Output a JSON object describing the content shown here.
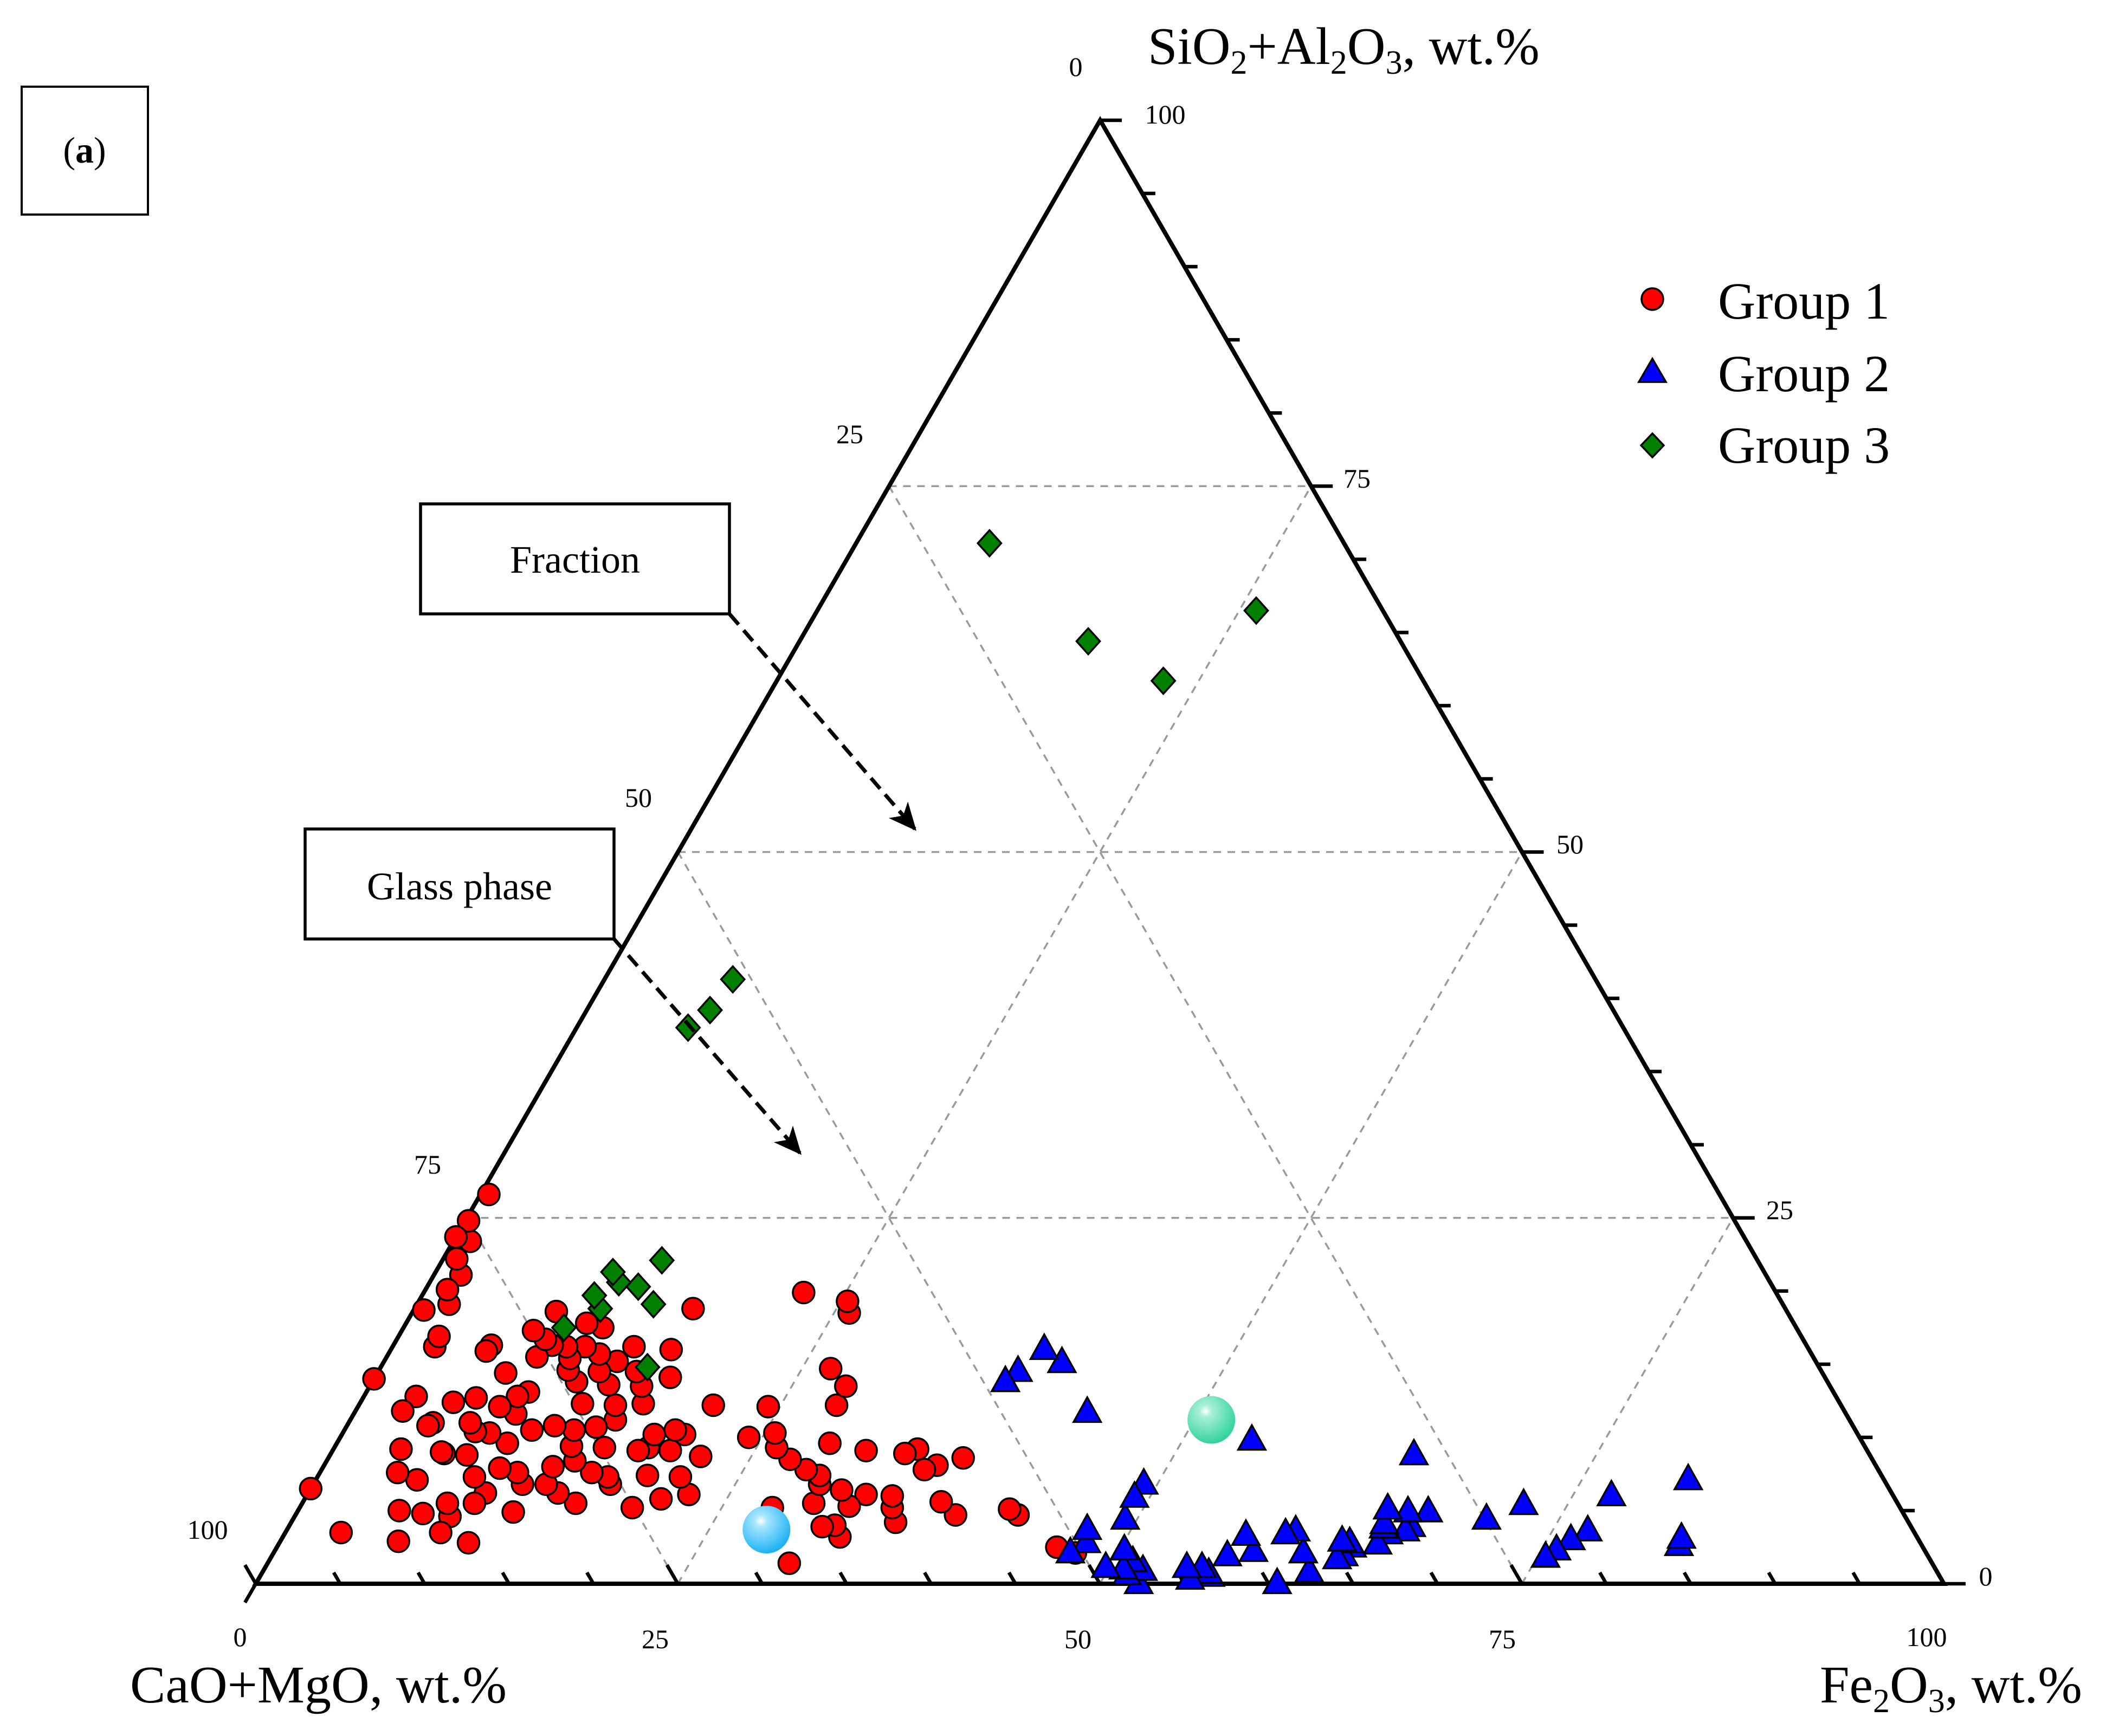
{
  "panel_label": {
    "open": "(",
    "letter": "a",
    "close": ")"
  },
  "annotations": {
    "fraction": "Fraction",
    "glass_phase": "Glass phase"
  },
  "colors": {
    "group1": "#ff0000",
    "group2": "#0000ff",
    "group3": "#007f00",
    "fraction_marker": "#2ed39a",
    "glass_marker": "#1ab0f2",
    "outline": "#000000"
  },
  "chart_data": {
    "type": "scatter",
    "subtype": "ternary",
    "axes": {
      "top": {
        "label": "SiO2+Al2O3, wt.%",
        "base": "SiO",
        "sub1": "2",
        "mid": "+Al",
        "sub2": "2",
        "mid2": "O",
        "sub3": "3",
        "tail": ", wt.%"
      },
      "left": {
        "label": "CaO+MgO, wt.%"
      },
      "right": {
        "label": "Fe2O3, wt.%",
        "base": "Fe",
        "sub1": "2",
        "mid": "O",
        "sub2": "3",
        "tail": ", wt.%"
      }
    },
    "tick_values": [
      0,
      25,
      50,
      75,
      100
    ],
    "tick_labels": {
      "top_axis": [
        "0",
        "25",
        "50",
        "75",
        "100"
      ],
      "right_axis": [
        "75",
        "50",
        "25",
        "0"
      ],
      "bottom_axis": [
        "0",
        "25",
        "50",
        "75",
        "100"
      ],
      "left_corner": "100"
    },
    "grid": "dashed at 25, 50, 75",
    "legend_position": "top-right",
    "series": [
      {
        "name": "Group 1",
        "marker": "circle",
        "color": "#ff0000",
        "points": [
          [
            47.5,
            2.1
          ],
          [
            46.2,
            2.5
          ],
          [
            42.8,
            4.7
          ],
          [
            42.1,
            5.1
          ],
          [
            39.1,
            4.7
          ],
          [
            37.6,
            8.6
          ],
          [
            37.8,
            5.6
          ],
          [
            36.3,
            8.1
          ],
          [
            35.7,
            7.8
          ],
          [
            35.8,
            4.2
          ],
          [
            35.1,
            5.2
          ],
          [
            34.7,
            6.0
          ],
          [
            34.6,
            9.2
          ],
          [
            34.0,
            8.9
          ],
          [
            33.1,
            6.1
          ],
          [
            33.0,
            3.2
          ],
          [
            32.5,
            5.3
          ],
          [
            32.3,
            4.0
          ],
          [
            31.6,
            9.1
          ],
          [
            31.5,
            6.4
          ],
          [
            31.6,
            3.9
          ],
          [
            30.9,
            1.4
          ],
          [
            30.3,
            5.5
          ],
          [
            30.0,
            6.8
          ],
          [
            29.7,
            7.4
          ],
          [
            29.2,
            9.6
          ],
          [
            28.7,
            7.8
          ],
          [
            28.3,
            12.2
          ],
          [
            28.2,
            13.5
          ],
          [
            28.0,
            5.2
          ],
          [
            27.4,
            8.5
          ],
          [
            26.7,
            14.7
          ],
          [
            26.2,
            9.3
          ],
          [
            25.9,
            18.5
          ],
          [
            25.6,
            10.3
          ],
          [
            25.4,
            19.3
          ],
          [
            24.3,
            12.1
          ],
          [
            24.2,
            10.0
          ],
          [
            22.6,
            6.1
          ],
          [
            22.5,
            19.9
          ],
          [
            22.0,
            8.7
          ],
          [
            21.5,
            7.3
          ],
          [
            21.1,
            5.8
          ],
          [
            21.0,
            12.2
          ],
          [
            20.3,
            10.2
          ],
          [
            20.0,
            9.1
          ],
          [
            19.7,
            5.2
          ],
          [
            19.5,
            7.4
          ],
          [
            19.6,
            10.5
          ],
          [
            18.6,
            9.3
          ],
          [
            18.5,
            10.2
          ],
          [
            18.1,
            9.1
          ],
          [
            17.5,
            14.1
          ],
          [
            17.6,
            6.8
          ],
          [
            17.2,
            7.3
          ],
          [
            16.8,
            12.3
          ],
          [
            16.6,
            16.0
          ],
          [
            16.5,
            18.8
          ],
          [
            16.1,
            13.5
          ],
          [
            16.0,
            9.3
          ],
          [
            16.1,
            7.6
          ],
          [
            16.2,
            5.5
          ],
          [
            15.7,
            11.2
          ],
          [
            15.3,
            14.5
          ],
          [
            15.2,
            12.2
          ],
          [
            14.8,
            10.7
          ],
          [
            14.7,
            8.4
          ],
          [
            14.8,
            6.2
          ],
          [
            14.3,
            16.2
          ],
          [
            14.1,
            13.6
          ],
          [
            14.0,
            9.4
          ],
          [
            13.8,
            15.2
          ],
          [
            13.8,
            6.8
          ],
          [
            13.6,
            10.5
          ],
          [
            13.6,
            8.0
          ],
          [
            13.2,
            12.3
          ],
          [
            13.1,
            14.5
          ],
          [
            12.8,
            4.9
          ],
          [
            12.5,
            15.7
          ],
          [
            12.4,
            6.8
          ],
          [
            12.3,
            10.8
          ],
          [
            12.1,
            13.8
          ],
          [
            11.8,
            17.5
          ],
          [
            11.7,
            7.6
          ],
          [
            11.4,
            16.2
          ],
          [
            11.2,
            2.8
          ],
          [
            11.2,
            14.6
          ],
          [
            11.1,
            10.5
          ],
          [
            10.9,
            15.4
          ],
          [
            10.7,
            17.8
          ],
          [
            10.5,
            7.9
          ],
          [
            10.5,
            6.2
          ],
          [
            10.3,
            16.2
          ],
          [
            10.2,
            5.5
          ],
          [
            10.1,
            9.6
          ],
          [
            9.6,
            13.1
          ],
          [
            9.6,
            11.6
          ],
          [
            9.4,
            16.3
          ],
          [
            9.3,
            7.3
          ],
          [
            9.2,
            4.6
          ],
          [
            9.1,
            12.8
          ],
          [
            9.2,
            3.5
          ],
          [
            8.9,
            15.5
          ],
          [
            8.8,
            16.7
          ],
          [
            8.7,
            10.3
          ],
          [
            8.6,
            5.5
          ],
          [
            8.5,
            18.6
          ],
          [
            8.4,
            12.1
          ],
          [
            8.1,
            8.8
          ],
          [
            7.8,
            17.3
          ],
          [
            7.8,
            10.4
          ],
          [
            7.6,
            14.4
          ],
          [
            7.5,
            4.8
          ],
          [
            7.2,
            11.0
          ],
          [
            7.0,
            2.9
          ],
          [
            6.7,
            8.9
          ],
          [
            6.7,
            12.7
          ],
          [
            6.5,
            9.0
          ],
          [
            6.0,
            7.1
          ],
          [
            6.0,
            5.0
          ],
          [
            5.8,
            16.3
          ],
          [
            5.7,
            15.9
          ],
          [
            5.5,
            12.4
          ],
          [
            5.0,
            11.0
          ],
          [
            4.8,
            10.8
          ],
          [
            4.6,
            7.6
          ],
          [
            4.0,
            9.2
          ],
          [
            3.3,
            3.5
          ],
          [
            3.1,
            12.8
          ],
          [
            2.8,
            11.8
          ],
          [
            2.5,
            16.2
          ],
          [
            2.4,
            16.9
          ],
          [
            1.9,
            19.1
          ],
          [
            1.6,
            21.1
          ],
          [
            1.3,
            20.1
          ],
          [
            1.0,
            23.4
          ],
          [
            0.8,
            22.2
          ],
          [
            0.6,
            18.7
          ],
          [
            0.5,
            26.6
          ],
          [
            0.2,
            24.8
          ],
          [
            0.0,
            14.0
          ],
          [
            0.0,
            6.5
          ],
          [
            0.0,
            23.7
          ]
        ]
      },
      {
        "name": "Group 2",
        "marker": "triangle",
        "color": "#0000ff",
        "points": [
          [
            83.0,
            2.6
          ],
          [
            82.9,
            3.1
          ],
          [
            81.3,
            7.1
          ],
          [
            77.3,
            6.0
          ],
          [
            77.1,
            3.6
          ],
          [
            76.4,
            3.0
          ],
          [
            75.9,
            2.3
          ],
          [
            75.5,
            1.8
          ],
          [
            72.4,
            5.4
          ],
          [
            70.7,
            4.4
          ],
          [
            67.0,
            4.9
          ],
          [
            66.5,
            3.9
          ],
          [
            66.3,
            3.6
          ],
          [
            65.8,
            4.9
          ],
          [
            65.4,
            3.4
          ],
          [
            65.1,
            2.7
          ],
          [
            64.9,
            3.8
          ],
          [
            64.8,
            4.1
          ],
          [
            64.5,
            5.1
          ],
          [
            64.2,
            8.8
          ],
          [
            63.7,
            2.5
          ],
          [
            63.5,
            1.9
          ],
          [
            63.4,
            2.8
          ],
          [
            63.2,
            1.7
          ],
          [
            62.9,
            2.9
          ],
          [
            62.0,
            0.8
          ],
          [
            61.0,
            2.1
          ],
          [
            60.5,
            0.0
          ],
          [
            59.8,
            3.6
          ],
          [
            59.3,
            3.4
          ],
          [
            58.0,
            2.2
          ],
          [
            57.0,
            3.3
          ],
          [
            56.6,
            1.9
          ],
          [
            56.3,
            0.5
          ],
          [
            56.1,
            0.7
          ],
          [
            55.5,
            1.1
          ],
          [
            55.2,
            0.3
          ],
          [
            54.6,
            1.1
          ],
          [
            54.1,
            9.8
          ],
          [
            52.3,
            0.0
          ],
          [
            52.1,
            0.9
          ],
          [
            51.3,
            0.6
          ],
          [
            51.2,
            1.5
          ],
          [
            50.9,
            1.0
          ],
          [
            50.3,
            2.3
          ],
          [
            49.8,
            1.1
          ],
          [
            49.3,
            4.4
          ],
          [
            49.2,
            6.8
          ],
          [
            49.1,
            5.9
          ],
          [
            47.8,
            2.8
          ],
          [
            47.4,
            3.7
          ],
          [
            47.2,
            2.1
          ],
          [
            43.4,
            11.7
          ],
          [
            40.2,
            15.1
          ],
          [
            38.7,
            16.0
          ],
          [
            37.9,
            14.5
          ],
          [
            37.5,
            13.8
          ]
        ]
      },
      {
        "name": "Group 3",
        "marker": "diamond",
        "color": "#007f00",
        "points": [
          [
            26.0,
            66.5
          ],
          [
            22.9,
            61.7
          ],
          [
            17.1,
            64.4
          ],
          [
            15.8,
            14.8
          ],
          [
            14.0,
            19.1
          ],
          [
            13.0,
            22.1
          ],
          [
            12.5,
            20.3
          ],
          [
            11.2,
            20.6
          ],
          [
            11.0,
            18.8
          ],
          [
            10.5,
            21.3
          ],
          [
            10.2,
            19.7
          ],
          [
            9.5,
            17.5
          ],
          [
            7.9,
            71.1
          ],
          [
            7.6,
            41.3
          ],
          [
            7.3,
            39.2
          ],
          [
            6.6,
            38.0
          ]
        ]
      },
      {
        "name": "Fraction (reference)",
        "marker": "sphere",
        "color": "#2ed39a",
        "points": [
          [
            51.0,
            11.2
          ]
        ]
      },
      {
        "name": "Glass phase (reference)",
        "marker": "sphere",
        "color": "#1ab0f2",
        "points": [
          [
            28.4,
            3.7
          ]
        ]
      }
    ]
  }
}
